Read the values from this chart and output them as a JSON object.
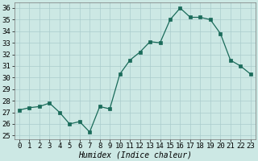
{
  "title": "",
  "xlabel": "Humidex (Indice chaleur)",
  "x": [
    0,
    1,
    2,
    3,
    4,
    5,
    6,
    7,
    8,
    9,
    10,
    11,
    12,
    13,
    14,
    15,
    16,
    17,
    18,
    19,
    20,
    21,
    22,
    23
  ],
  "y": [
    27.2,
    27.4,
    27.5,
    27.8,
    27.0,
    26.0,
    26.2,
    25.3,
    27.5,
    27.3,
    30.3,
    31.5,
    32.2,
    33.1,
    33.0,
    35.0,
    36.0,
    35.2,
    35.2,
    35.0,
    33.8,
    31.5,
    31.0,
    30.3
  ],
  "line_color": "#1a6b5a",
  "marker_color": "#1a6b5a",
  "bg_color": "#cce8e4",
  "grid_color": "#aacccc",
  "yticks": [
    25,
    26,
    27,
    28,
    29,
    30,
    31,
    32,
    33,
    34,
    35,
    36
  ],
  "xticks": [
    0,
    1,
    2,
    3,
    4,
    5,
    6,
    7,
    8,
    9,
    10,
    11,
    12,
    13,
    14,
    15,
    16,
    17,
    18,
    19,
    20,
    21,
    22,
    23
  ],
  "axis_fontsize": 7,
  "tick_fontsize": 6.5
}
